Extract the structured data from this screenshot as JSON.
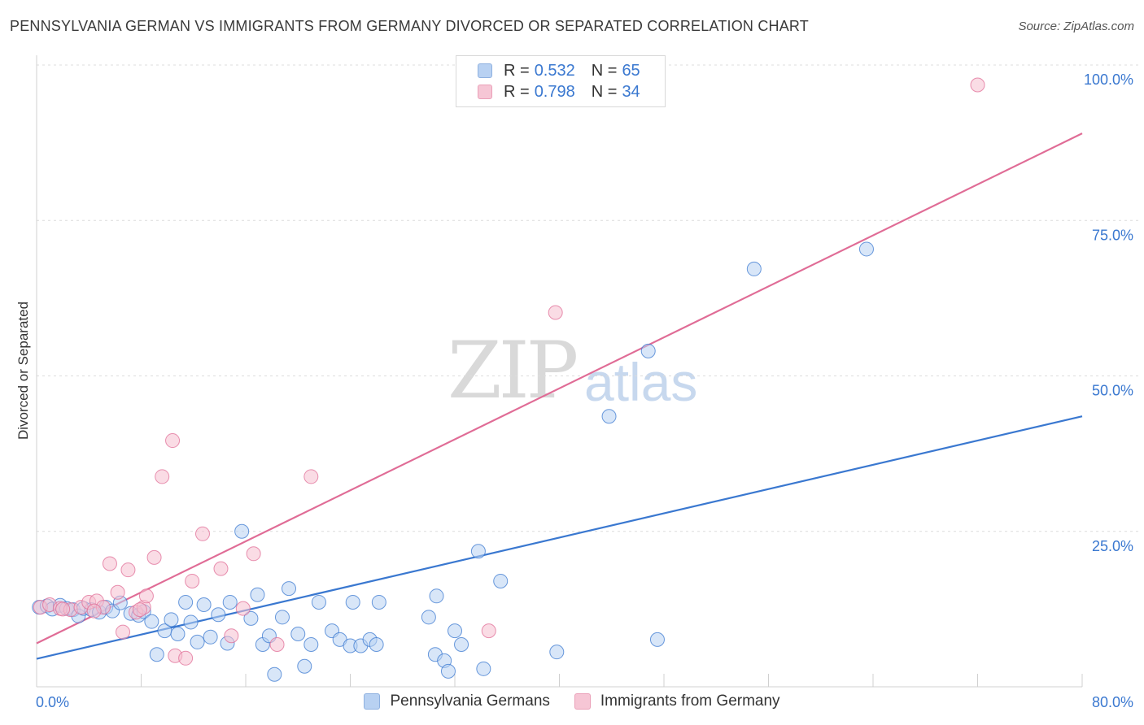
{
  "title": "PENNSYLVANIA GERMAN VS IMMIGRANTS FROM GERMANY DIVORCED OR SEPARATED CORRELATION CHART",
  "source": "Source: ZipAtlas.com",
  "watermark": {
    "zip": "ZIP",
    "atlas": "atlas"
  },
  "legend": {
    "series1": {
      "r_label": "R =",
      "r_value": "0.532",
      "n_label": "N =",
      "n_value": "65"
    },
    "series2": {
      "r_label": "R =",
      "r_value": "0.798",
      "n_label": "N =",
      "n_value": "34"
    }
  },
  "chart_data": {
    "type": "scatter",
    "title": "PENNSYLVANIA GERMAN VS IMMIGRANTS FROM GERMANY DIVORCED OR SEPARATED CORRELATION CHART",
    "xlabel": "",
    "ylabel": "Divorced or Separated",
    "xlim": [
      0,
      80
    ],
    "ylim": [
      0,
      100
    ],
    "x_tick_labels": {
      "min": "0.0%",
      "max": "80.0%"
    },
    "y_ticks": [
      {
        "value": 25,
        "label": "25.0%"
      },
      {
        "value": 50,
        "label": "50.0%"
      },
      {
        "value": 75,
        "label": "75.0%"
      },
      {
        "value": 100,
        "label": "100.0%"
      }
    ],
    "series": [
      {
        "name": "Pennsylvania Germans",
        "color": "#3a78d0",
        "fill": "#b8d1f2",
        "trend": {
          "x0": 0,
          "y0": 4.5,
          "x1": 80,
          "y1": 43.5
        },
        "points": [
          [
            0.2,
            12.8
          ],
          [
            0.8,
            13.0
          ],
          [
            1.2,
            12.5
          ],
          [
            1.8,
            13.1
          ],
          [
            2.3,
            12.6
          ],
          [
            2.8,
            12.4
          ],
          [
            3.2,
            11.4
          ],
          [
            3.6,
            12.6
          ],
          [
            4.2,
            12.4
          ],
          [
            4.8,
            12.0
          ],
          [
            5.3,
            12.8
          ],
          [
            5.8,
            12.2
          ],
          [
            6.4,
            13.5
          ],
          [
            7.2,
            11.8
          ],
          [
            7.8,
            11.5
          ],
          [
            8.2,
            12.1
          ],
          [
            8.8,
            10.5
          ],
          [
            9.2,
            5.2
          ],
          [
            9.8,
            9.0
          ],
          [
            10.3,
            10.8
          ],
          [
            10.8,
            8.5
          ],
          [
            11.4,
            13.6
          ],
          [
            11.8,
            10.4
          ],
          [
            12.3,
            7.2
          ],
          [
            12.8,
            13.2
          ],
          [
            13.3,
            8.0
          ],
          [
            13.9,
            11.6
          ],
          [
            14.6,
            7.0
          ],
          [
            14.8,
            13.6
          ],
          [
            15.7,
            25.0
          ],
          [
            16.4,
            11.0
          ],
          [
            16.9,
            14.8
          ],
          [
            17.3,
            6.8
          ],
          [
            17.8,
            8.2
          ],
          [
            18.2,
            2.0
          ],
          [
            18.8,
            11.2
          ],
          [
            19.3,
            15.8
          ],
          [
            20.0,
            8.5
          ],
          [
            20.5,
            3.3
          ],
          [
            21.0,
            6.8
          ],
          [
            21.6,
            13.6
          ],
          [
            22.6,
            9.0
          ],
          [
            23.2,
            7.6
          ],
          [
            24.0,
            6.6
          ],
          [
            24.2,
            13.6
          ],
          [
            24.8,
            6.6
          ],
          [
            25.5,
            7.6
          ],
          [
            26.0,
            6.8
          ],
          [
            26.2,
            13.6
          ],
          [
            30.0,
            11.2
          ],
          [
            30.5,
            5.2
          ],
          [
            30.6,
            14.6
          ],
          [
            31.2,
            4.2
          ],
          [
            32.0,
            9.0
          ],
          [
            32.5,
            6.8
          ],
          [
            33.8,
            21.8
          ],
          [
            34.2,
            2.9
          ],
          [
            35.5,
            17.0
          ],
          [
            39.8,
            5.6
          ],
          [
            43.8,
            43.5
          ],
          [
            46.8,
            54.0
          ],
          [
            47.5,
            7.6
          ],
          [
            54.9,
            67.2
          ],
          [
            63.5,
            70.4
          ],
          [
            31.5,
            2.5
          ]
        ]
      },
      {
        "name": "Immigrants from Germany",
        "color": "#e06c96",
        "fill": "#f6bfd0",
        "trend": {
          "x0": 0,
          "y0": 7.0,
          "x1": 80,
          "y1": 89.0
        },
        "points": [
          [
            0.3,
            12.8
          ],
          [
            1.0,
            13.2
          ],
          [
            1.8,
            12.6
          ],
          [
            2.6,
            12.4
          ],
          [
            3.4,
            12.8
          ],
          [
            4.0,
            13.6
          ],
          [
            4.6,
            13.8
          ],
          [
            5.1,
            12.8
          ],
          [
            5.6,
            19.8
          ],
          [
            6.2,
            15.2
          ],
          [
            6.6,
            8.8
          ],
          [
            7.0,
            18.8
          ],
          [
            7.6,
            12.0
          ],
          [
            8.2,
            12.8
          ],
          [
            8.4,
            14.6
          ],
          [
            9.0,
            20.8
          ],
          [
            9.6,
            33.8
          ],
          [
            10.4,
            39.6
          ],
          [
            10.6,
            5.0
          ],
          [
            11.4,
            4.6
          ],
          [
            11.9,
            17.0
          ],
          [
            12.7,
            24.6
          ],
          [
            14.1,
            19.0
          ],
          [
            14.9,
            8.2
          ],
          [
            15.8,
            12.6
          ],
          [
            16.6,
            21.4
          ],
          [
            18.4,
            6.8
          ],
          [
            21.0,
            33.8
          ],
          [
            34.6,
            9.0
          ],
          [
            39.7,
            60.2
          ],
          [
            72.0,
            96.8
          ],
          [
            4.4,
            12.2
          ],
          [
            2.0,
            12.5
          ],
          [
            7.9,
            12.4
          ]
        ]
      }
    ]
  }
}
